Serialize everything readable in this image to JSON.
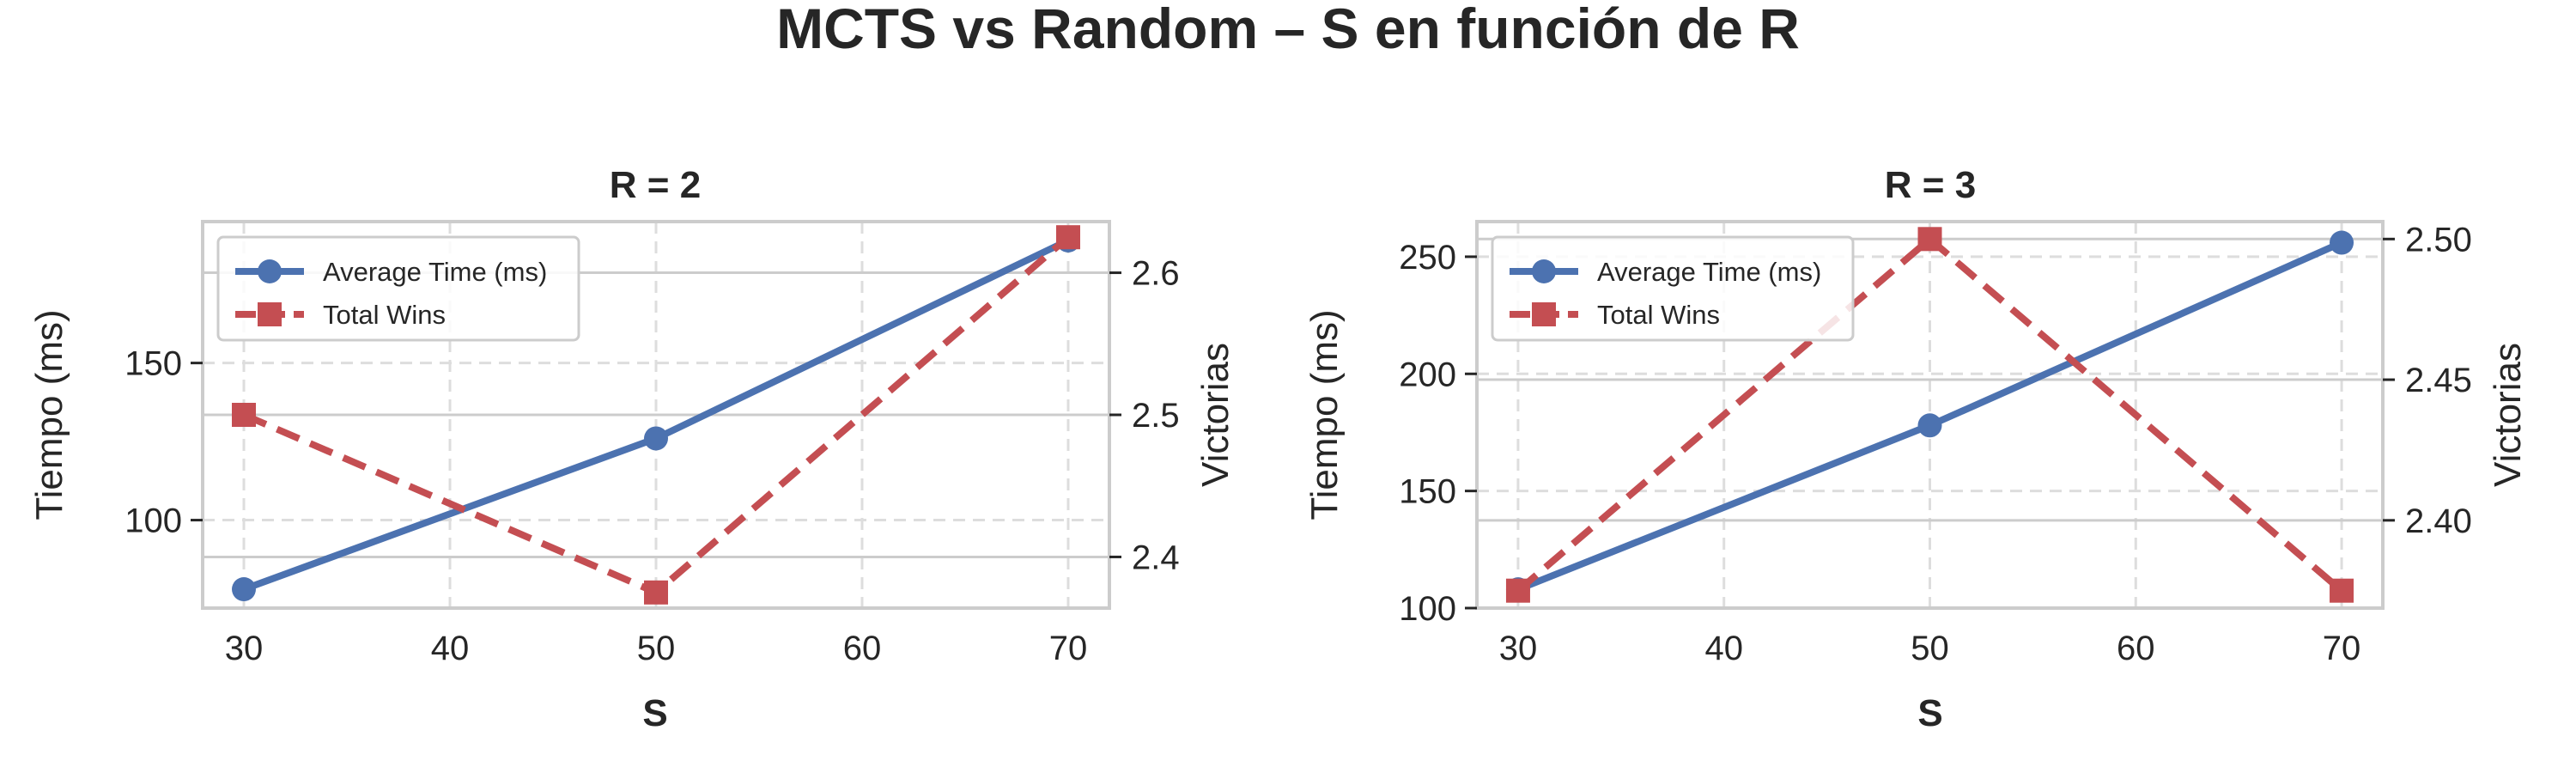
{
  "title": "MCTS vs Random – S en función de R",
  "colors": {
    "time": "#4c72b0",
    "wins": "#c44e52",
    "axes": "#cccccc",
    "grid": "#dddddd",
    "text": "#262626"
  },
  "chart_data": [
    {
      "type": "line",
      "title": "R = 2",
      "xlabel": "S",
      "ylabel_left": "Tiempo (ms)",
      "ylabel_right": "Victorias",
      "x": [
        30,
        50,
        70
      ],
      "xticks": [
        "30",
        "40",
        "50",
        "60",
        "70"
      ],
      "xlim": [
        28,
        72
      ],
      "ylim_left": [
        72,
        195
      ],
      "yticks_left": [
        "100",
        "150"
      ],
      "ylim_right": [
        2.364,
        2.636
      ],
      "yticks_right": [
        "2.4",
        "2.5",
        "2.6"
      ],
      "legend_position": "upper left",
      "grid": true,
      "series": [
        {
          "name": "Average Time (ms)",
          "axis": "left",
          "marker": "circle",
          "style": "solid",
          "values": [
            78,
            126,
            189
          ]
        },
        {
          "name": "Total Wins",
          "axis": "right",
          "marker": "square",
          "style": "dashed",
          "values": [
            2.5,
            2.375,
            2.625
          ]
        }
      ]
    },
    {
      "type": "line",
      "title": "R = 3",
      "xlabel": "S",
      "ylabel_left": "Tiempo (ms)",
      "ylabel_right": "Victorias",
      "x": [
        30,
        50,
        70
      ],
      "xticks": [
        "30",
        "40",
        "50",
        "60",
        "70"
      ],
      "xlim": [
        28,
        72
      ],
      "ylim_left": [
        100,
        265
      ],
      "yticks_left": [
        "100",
        "150",
        "200",
        "250"
      ],
      "ylim_right": [
        2.3688,
        2.5062
      ],
      "yticks_right": [
        "2.40",
        "2.45",
        "2.50"
      ],
      "legend_position": "upper left",
      "grid": true,
      "series": [
        {
          "name": "Average Time (ms)",
          "axis": "left",
          "marker": "circle",
          "style": "solid",
          "values": [
            108,
            178,
            256
          ]
        },
        {
          "name": "Total Wins",
          "axis": "right",
          "marker": "square",
          "style": "dashed",
          "values": [
            2.375,
            2.5,
            2.375
          ]
        }
      ]
    }
  ]
}
